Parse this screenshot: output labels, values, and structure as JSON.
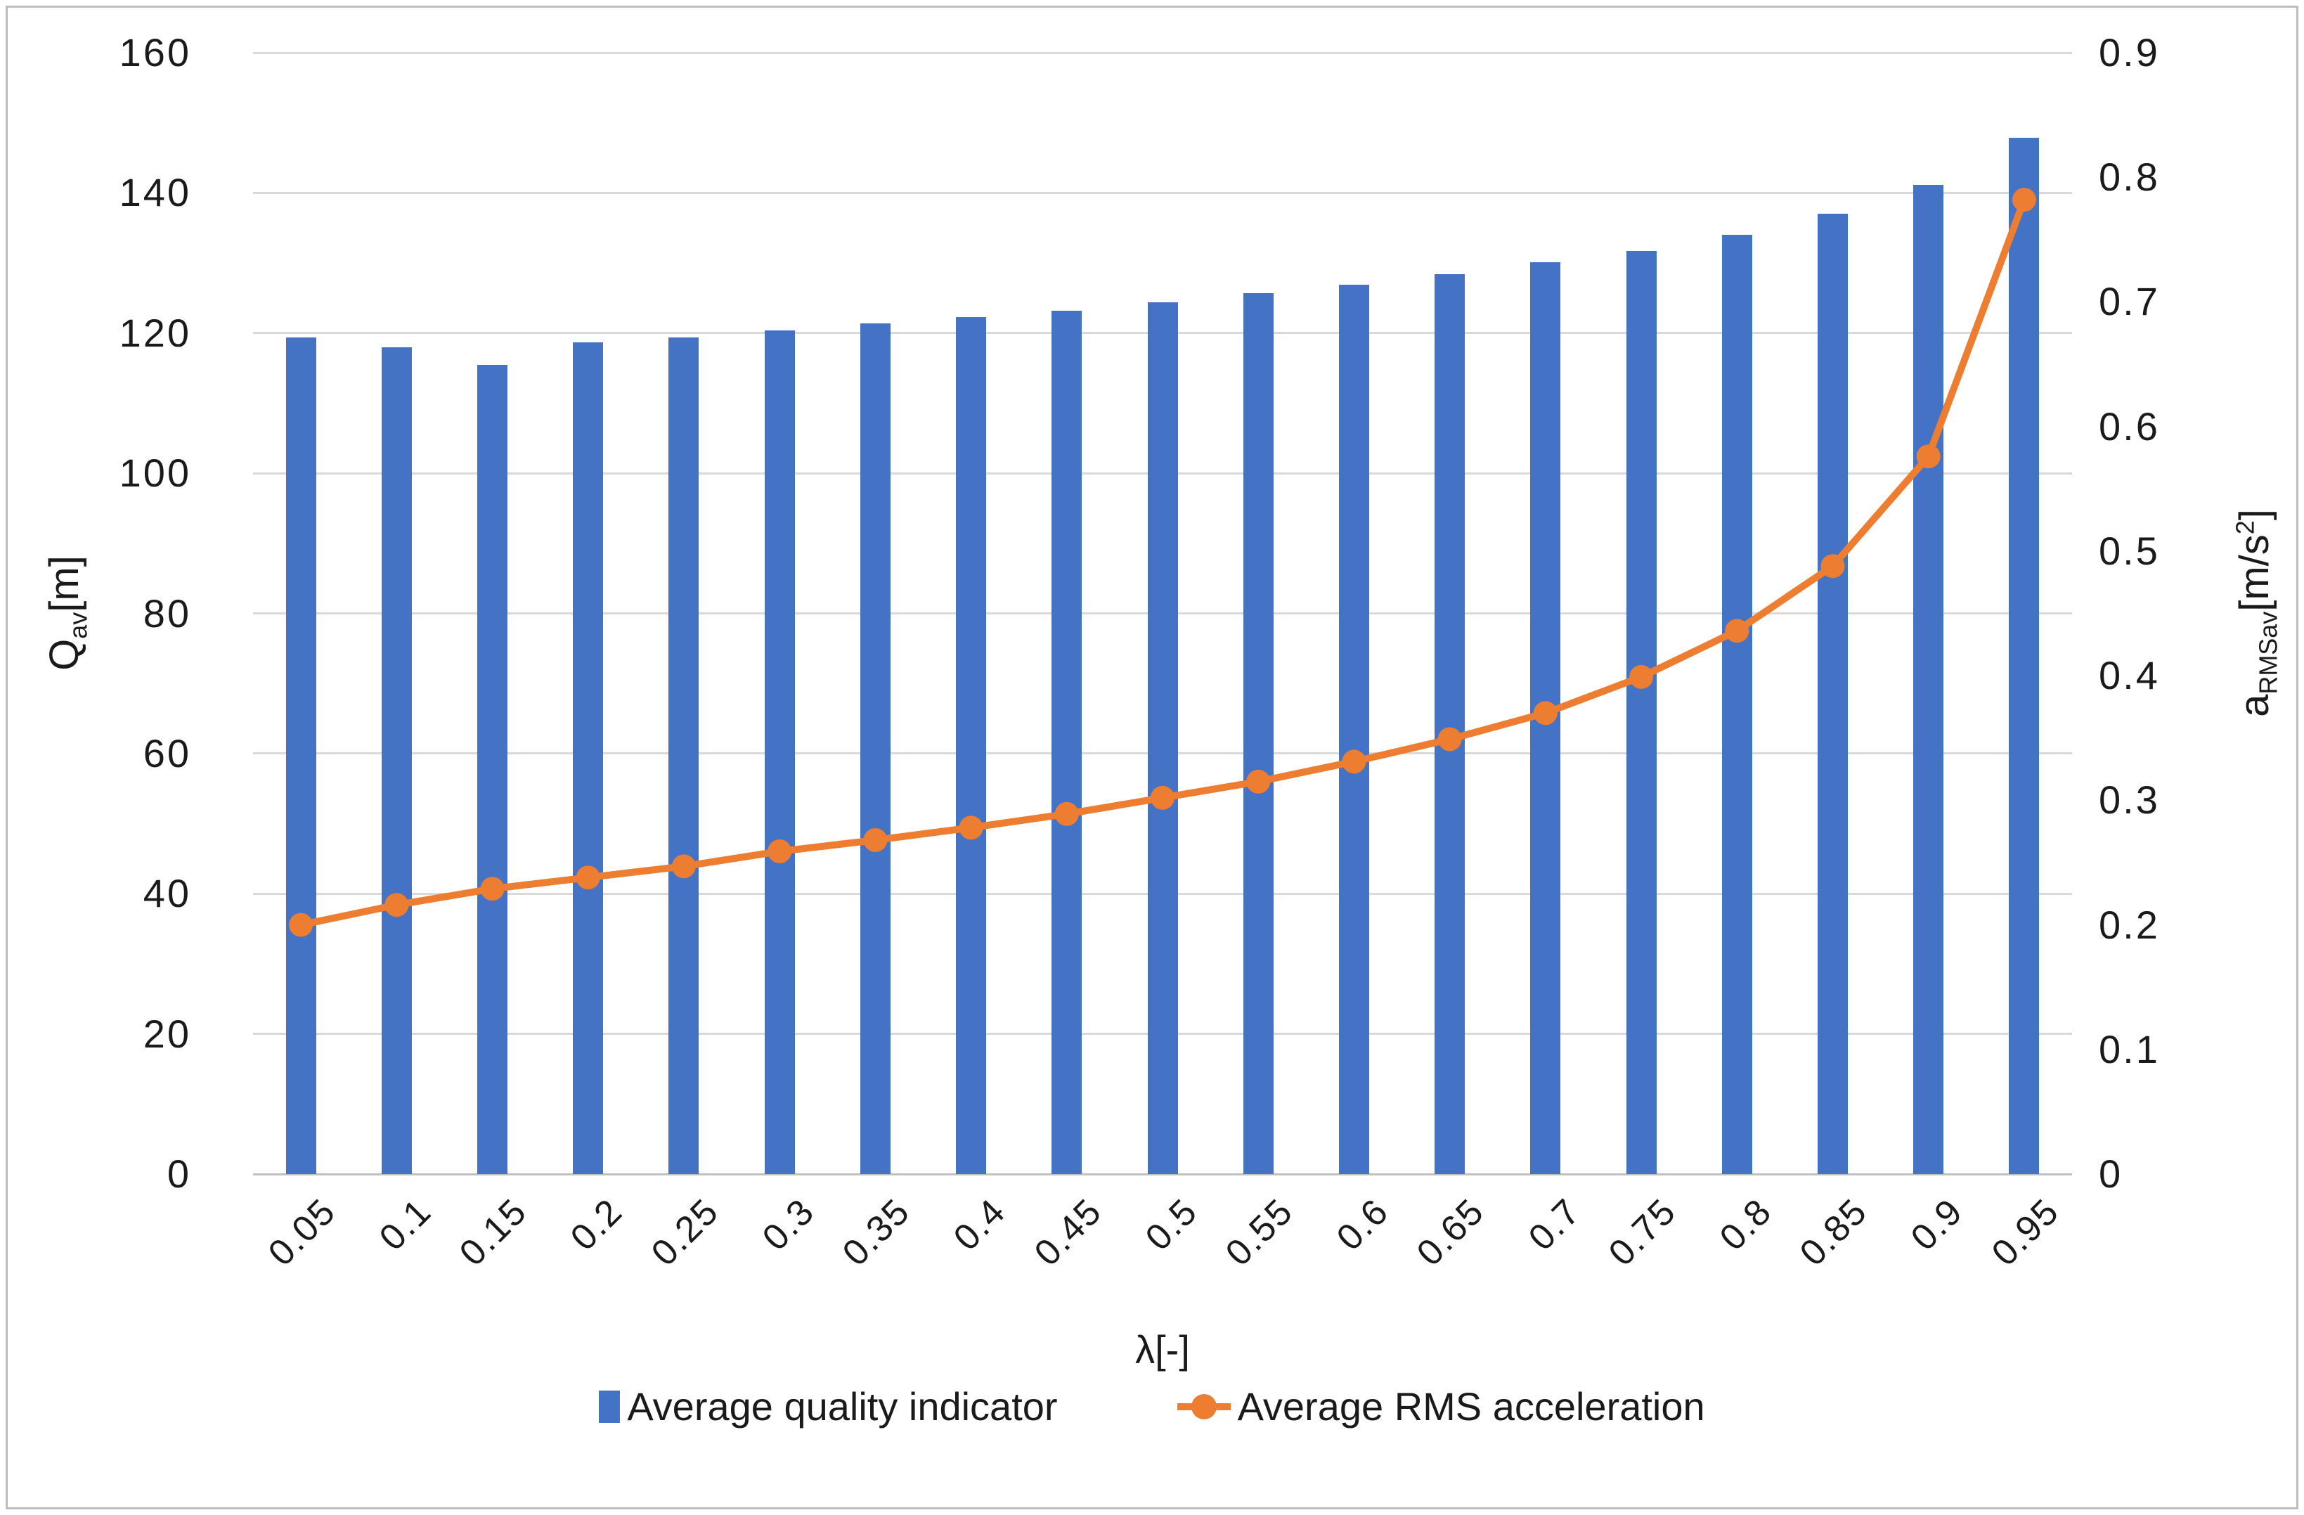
{
  "colors": {
    "bar": "#4472C4",
    "line": "#ED7D31",
    "gridline": "#D9D9D9",
    "axis_line": "#BFBFBF",
    "text": "#1A1A1A",
    "border": "#BDBDBD",
    "background": "#FFFFFF"
  },
  "chart_data": {
    "type": "bar",
    "subtype": "column-line-combo-dual-axis",
    "title": "",
    "categories": [
      "0.05",
      "0.1",
      "0.15",
      "0.2",
      "0.25",
      "0.3",
      "0.35",
      "0.4",
      "0.45",
      "0.5",
      "0.55",
      "0.6",
      "0.65",
      "0.7",
      "0.75",
      "0.8",
      "0.85",
      "0.9",
      "0.95"
    ],
    "series": [
      {
        "name": "Average quality indicator",
        "type": "bar",
        "axis": "left",
        "color": "#4472C4",
        "values": [
          119.4,
          118.0,
          115.5,
          118.7,
          119.4,
          120.4,
          121.4,
          122.3,
          123.2,
          124.4,
          125.7,
          126.9,
          128.4,
          130.1,
          131.7,
          134.0,
          137.0,
          141.1,
          147.9
        ]
      },
      {
        "name": "Average RMS acceleration",
        "type": "line",
        "axis": "right",
        "color": "#ED7D31",
        "values": [
          0.2,
          0.216,
          0.229,
          0.238,
          0.247,
          0.259,
          0.268,
          0.278,
          0.289,
          0.302,
          0.315,
          0.331,
          0.349,
          0.37,
          0.399,
          0.436,
          0.488,
          0.576,
          0.782
        ]
      }
    ],
    "left_axis": {
      "title_base": "Q",
      "title_sub": "av",
      "title_unit": "[m]",
      "min": 0,
      "max": 160,
      "step": 20,
      "tick_labels": [
        "0",
        "20",
        "40",
        "60",
        "80",
        "100",
        "120",
        "140",
        "160"
      ]
    },
    "right_axis": {
      "title_base": "a",
      "title_sub": "RMSav",
      "title_unit_pre": "[m/s",
      "title_sup": "2",
      "title_unit_post": "]",
      "min": 0,
      "max": 0.9,
      "step": 0.1,
      "tick_labels": [
        "0",
        "0.1",
        "0.2",
        "0.3",
        "0.4",
        "0.5",
        "0.6",
        "0.7",
        "0.8",
        "0.9"
      ]
    },
    "x_axis": {
      "title": "λ[-]"
    },
    "grid": true,
    "legend_position": "bottom"
  }
}
